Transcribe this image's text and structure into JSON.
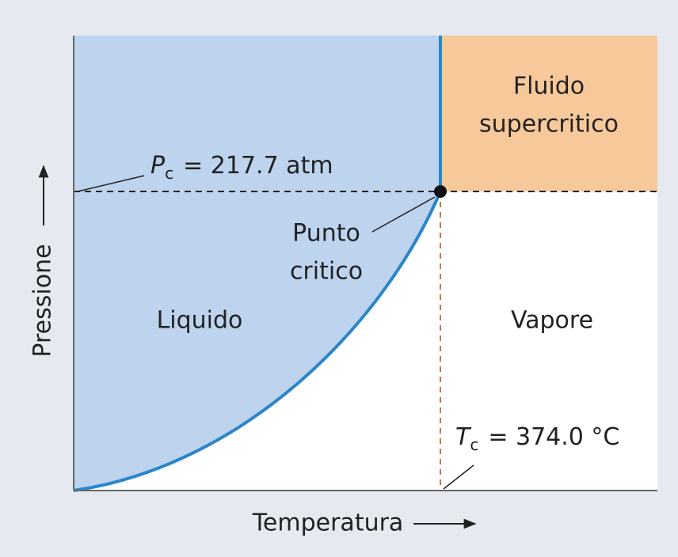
{
  "diagram": {
    "regions": {
      "supercritical": {
        "lines": [
          "Fluido",
          "supercritico"
        ]
      },
      "liquid": "Liquido",
      "vapor": "Vapore"
    },
    "critical_point": {
      "lines": [
        "Punto",
        "critico"
      ]
    },
    "pressure_label": {
      "symbol": "P",
      "subscript": "c",
      "rest": "= 217.7 atm"
    },
    "temperature_label": {
      "symbol": "T",
      "subscript": "c",
      "rest": "= 374.0 °C"
    },
    "y_axis": "Pressione",
    "x_axis": "Temperatura"
  }
}
